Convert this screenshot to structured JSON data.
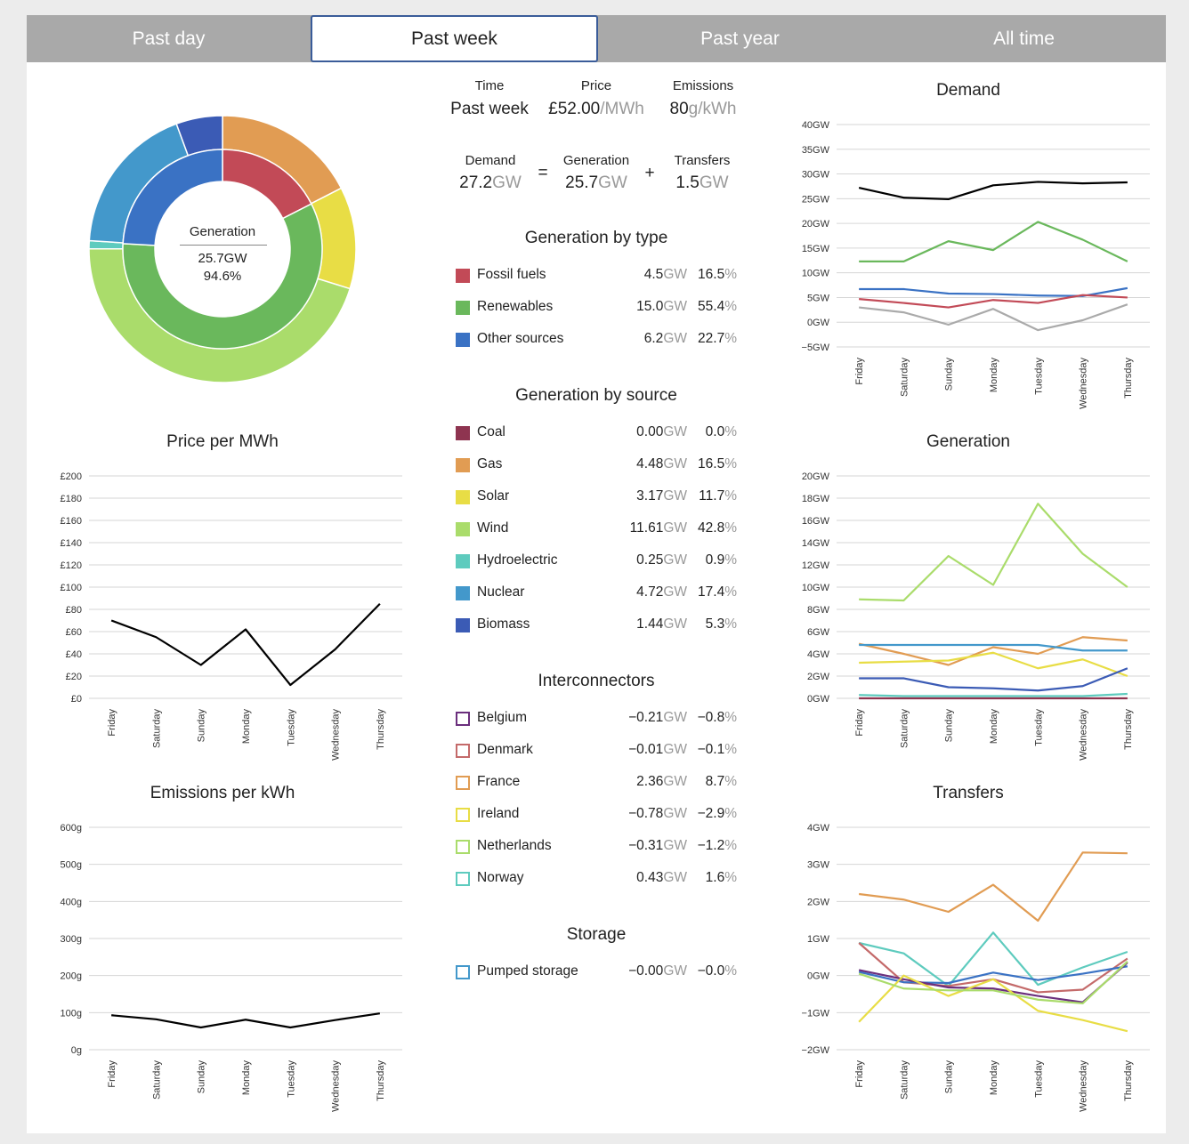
{
  "tabs": [
    {
      "label": "Past day",
      "active": false
    },
    {
      "label": "Past week",
      "active": true
    },
    {
      "label": "Past year",
      "active": false
    },
    {
      "label": "All time",
      "active": false
    }
  ],
  "summary": {
    "time": {
      "label": "Time",
      "value": "Past week"
    },
    "price": {
      "label": "Price",
      "value": "£52.00",
      "unit": "/MWh"
    },
    "emissions": {
      "label": "Emissions",
      "value": "80",
      "unit": "g/kWh"
    },
    "demand": {
      "label": "Demand",
      "value": "27.2",
      "unit": "GW"
    },
    "equals": "=",
    "generation": {
      "label": "Generation",
      "value": "25.7",
      "unit": "GW"
    },
    "plus": "+",
    "transfers": {
      "label": "Transfers",
      "value": "1.5",
      "unit": "GW"
    }
  },
  "donut": {
    "center_label": "Generation",
    "center_gw": "25.7GW",
    "center_pct": "94.6%",
    "inner": [
      {
        "name": "Fossil fuels",
        "value": 4.5,
        "color": "#c24a57"
      },
      {
        "name": "Renewables",
        "value": 15.0,
        "color": "#6ab85c"
      },
      {
        "name": "Other sources",
        "value": 6.2,
        "color": "#3a72c4"
      }
    ],
    "outer": [
      {
        "name": "Coal",
        "value": 0.0,
        "color": "#8e3450"
      },
      {
        "name": "Gas",
        "value": 4.48,
        "color": "#e19c53"
      },
      {
        "name": "Solar",
        "value": 3.17,
        "color": "#e8dd45"
      },
      {
        "name": "Wind",
        "value": 11.61,
        "color": "#aadc6b"
      },
      {
        "name": "Hydroelectric",
        "value": 0.25,
        "color": "#5ecbbe"
      },
      {
        "name": "Nuclear",
        "value": 4.72,
        "color": "#4398cb"
      },
      {
        "name": "Biomass",
        "value": 1.44,
        "color": "#3b5bb5"
      }
    ]
  },
  "gen_by_type": {
    "title": "Generation by type",
    "rows": [
      {
        "name": "Fossil fuels",
        "gw": "4.5",
        "pct": "16.5%",
        "color": "#c24a57",
        "filled": true
      },
      {
        "name": "Renewables",
        "gw": "15.0",
        "pct": "55.4%",
        "color": "#6ab85c",
        "filled": true
      },
      {
        "name": "Other sources",
        "gw": "6.2",
        "pct": "22.7%",
        "color": "#3a72c4",
        "filled": true
      }
    ]
  },
  "gen_by_source": {
    "title": "Generation by source",
    "rows": [
      {
        "name": "Coal",
        "gw": "0.00",
        "pct": "0.0%",
        "color": "#8e3450",
        "filled": true
      },
      {
        "name": "Gas",
        "gw": "4.48",
        "pct": "16.5%",
        "color": "#e19c53",
        "filled": true
      },
      {
        "name": "Solar",
        "gw": "3.17",
        "pct": "11.7%",
        "color": "#e8dd45",
        "filled": true
      },
      {
        "name": "Wind",
        "gw": "11.61",
        "pct": "42.8%",
        "color": "#aadc6b",
        "filled": true
      },
      {
        "name": "Hydroelectric",
        "gw": "0.25",
        "pct": "0.9%",
        "color": "#5ecbbe",
        "filled": true
      },
      {
        "name": "Nuclear",
        "gw": "4.72",
        "pct": "17.4%",
        "color": "#4398cb",
        "filled": true
      },
      {
        "name": "Biomass",
        "gw": "1.44",
        "pct": "5.3%",
        "color": "#3b5bb5",
        "filled": true
      }
    ]
  },
  "interconnectors": {
    "title": "Interconnectors",
    "rows": [
      {
        "name": "Belgium",
        "gw": "−0.21",
        "pct": "−0.8%",
        "color": "#6b2f7d",
        "filled": false
      },
      {
        "name": "Denmark",
        "gw": "−0.01",
        "pct": "−0.1%",
        "color": "#c46a6a",
        "filled": false
      },
      {
        "name": "France",
        "gw": "2.36",
        "pct": "8.7%",
        "color": "#e19c53",
        "filled": false
      },
      {
        "name": "Ireland",
        "gw": "−0.78",
        "pct": "−2.9%",
        "color": "#e8dd45",
        "filled": false
      },
      {
        "name": "Netherlands",
        "gw": "−0.31",
        "pct": "−1.2%",
        "color": "#aadc6b",
        "filled": false
      },
      {
        "name": "Norway",
        "gw": "0.43",
        "pct": "1.6%",
        "color": "#5ecbbe",
        "filled": false
      }
    ]
  },
  "storage": {
    "title": "Storage",
    "rows": [
      {
        "name": "Pumped storage",
        "gw": "−0.00",
        "pct": "−0.0%",
        "color": "#4398cb",
        "filled": false
      }
    ]
  },
  "gw_unit": "GW",
  "chart_data": [
    {
      "id": "price",
      "type": "line",
      "title": "Price per MWh",
      "categories": [
        "Friday",
        "Saturday",
        "Sunday",
        "Monday",
        "Tuesday",
        "Wednesday",
        "Thursday"
      ],
      "yticks": [
        "£0",
        "£20",
        "£40",
        "£60",
        "£80",
        "£100",
        "£120",
        "£140",
        "£160",
        "£180",
        "£200"
      ],
      "ylim": [
        0,
        200
      ],
      "series": [
        {
          "color": "#000000",
          "values": [
            70,
            55,
            30,
            62,
            12,
            44,
            85
          ]
        }
      ]
    },
    {
      "id": "emissions",
      "type": "line",
      "title": "Emissions per kWh",
      "categories": [
        "Friday",
        "Saturday",
        "Sunday",
        "Monday",
        "Tuesday",
        "Wednesday",
        "Thursday"
      ],
      "yticks": [
        "0g",
        "100g",
        "200g",
        "300g",
        "400g",
        "500g",
        "600g"
      ],
      "ylim": [
        0,
        600
      ],
      "series": [
        {
          "color": "#000000",
          "values": [
            93,
            82,
            60,
            81,
            60,
            80,
            98
          ]
        }
      ]
    },
    {
      "id": "demand",
      "type": "line",
      "title": "Demand",
      "categories": [
        "Friday",
        "Saturday",
        "Sunday",
        "Monday",
        "Tuesday",
        "Wednesday",
        "Thursday"
      ],
      "yticks": [
        "−5GW",
        "0GW",
        "5GW",
        "10GW",
        "15GW",
        "20GW",
        "25GW",
        "30GW",
        "35GW",
        "40GW"
      ],
      "ylim": [
        -5,
        40
      ],
      "series": [
        {
          "color": "#000000",
          "values": [
            27.2,
            25.2,
            24.9,
            27.7,
            28.4,
            28.1,
            28.3
          ]
        },
        {
          "color": "#6ab85c",
          "values": [
            12.3,
            12.3,
            16.4,
            14.6,
            20.3,
            16.7,
            12.3
          ]
        },
        {
          "color": "#3a72c4",
          "values": [
            6.7,
            6.7,
            5.8,
            5.7,
            5.4,
            5.3,
            6.9
          ]
        },
        {
          "color": "#c24a57",
          "values": [
            4.7,
            3.9,
            3.0,
            4.5,
            3.9,
            5.5,
            5.0
          ]
        },
        {
          "color": "#aaaaaa",
          "values": [
            3.0,
            2.0,
            -0.5,
            2.7,
            -1.6,
            0.4,
            3.6
          ]
        }
      ]
    },
    {
      "id": "generation",
      "type": "line",
      "title": "Generation",
      "categories": [
        "Friday",
        "Saturday",
        "Sunday",
        "Monday",
        "Tuesday",
        "Wednesday",
        "Thursday"
      ],
      "yticks": [
        "0GW",
        "2GW",
        "4GW",
        "6GW",
        "8GW",
        "10GW",
        "12GW",
        "14GW",
        "16GW",
        "18GW",
        "20GW"
      ],
      "ylim": [
        0,
        20
      ],
      "series": [
        {
          "color": "#aadc6b",
          "values": [
            8.9,
            8.8,
            12.8,
            10.2,
            17.5,
            13.0,
            10.0
          ]
        },
        {
          "color": "#e19c53",
          "values": [
            4.9,
            4.0,
            3.0,
            4.6,
            4.0,
            5.5,
            5.2
          ]
        },
        {
          "color": "#4398cb",
          "values": [
            4.8,
            4.8,
            4.8,
            4.8,
            4.8,
            4.3,
            4.3
          ]
        },
        {
          "color": "#e8dd45",
          "values": [
            3.2,
            3.3,
            3.4,
            4.1,
            2.7,
            3.5,
            2.0
          ]
        },
        {
          "color": "#3b5bb5",
          "values": [
            1.8,
            1.8,
            1.0,
            0.9,
            0.7,
            1.1,
            2.7
          ]
        },
        {
          "color": "#5ecbbe",
          "values": [
            0.3,
            0.2,
            0.2,
            0.2,
            0.2,
            0.2,
            0.4
          ]
        },
        {
          "color": "#8e3450",
          "values": [
            0.0,
            0.0,
            0.0,
            0.0,
            0.0,
            0.0,
            0.0
          ]
        }
      ]
    },
    {
      "id": "transfers",
      "type": "line",
      "title": "Transfers",
      "categories": [
        "Friday",
        "Saturday",
        "Sunday",
        "Monday",
        "Tuesday",
        "Wednesday",
        "Thursday"
      ],
      "yticks": [
        "−2GW",
        "−1GW",
        "0GW",
        "1GW",
        "2GW",
        "3GW",
        "4GW"
      ],
      "ylim": [
        -2,
        4
      ],
      "series": [
        {
          "color": "#e19c53",
          "values": [
            2.2,
            2.05,
            1.72,
            2.45,
            1.48,
            3.32,
            3.3
          ]
        },
        {
          "color": "#5ecbbe",
          "values": [
            0.88,
            0.6,
            -0.28,
            1.16,
            -0.25,
            0.22,
            0.64
          ]
        },
        {
          "color": "#c46a6a",
          "values": [
            0.88,
            -0.18,
            -0.28,
            -0.1,
            -0.45,
            -0.38,
            0.46
          ]
        },
        {
          "color": "#3a72c4",
          "values": [
            0.1,
            -0.18,
            -0.2,
            0.08,
            -0.12,
            0.05,
            0.25
          ]
        },
        {
          "color": "#6b2f7d",
          "values": [
            0.15,
            -0.1,
            -0.32,
            -0.35,
            -0.55,
            -0.72,
            0.35
          ]
        },
        {
          "color": "#e8dd45",
          "values": [
            -1.25,
            0.0,
            -0.55,
            -0.1,
            -0.95,
            -1.2,
            -1.5
          ]
        },
        {
          "color": "#aadc6b",
          "values": [
            0.05,
            -0.35,
            -0.4,
            -0.4,
            -0.65,
            -0.75,
            0.38
          ]
        }
      ]
    }
  ]
}
